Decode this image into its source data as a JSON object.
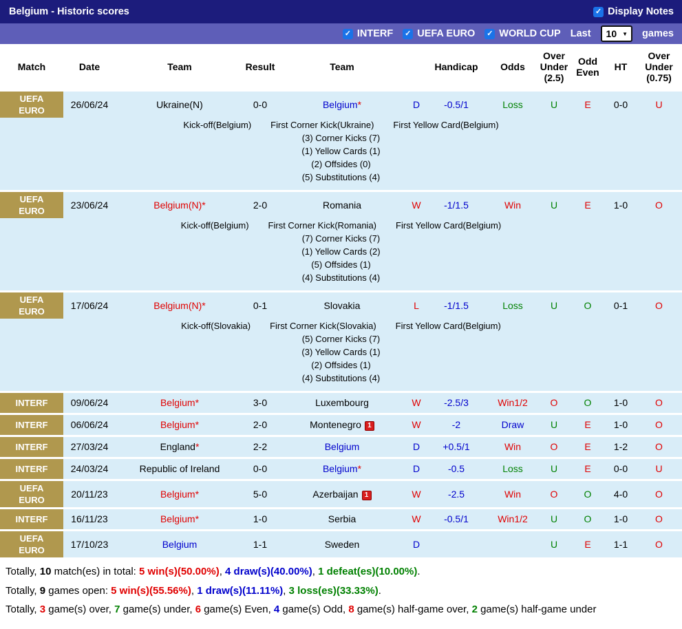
{
  "colors": {
    "bar1_bg": "#1c1c7c",
    "bar2_bg": "#5e5eb8",
    "badge_bg": "#b0984e",
    "row_bg": "#d9edf8",
    "red": "#e00000",
    "blue": "#0000cc",
    "green": "#008000",
    "checkbox_blue": "#1a73e8"
  },
  "title_bar": {
    "title": "Belgium - Historic scores",
    "display_notes_label": "Display Notes"
  },
  "filter_bar": {
    "filters": [
      "INTERF",
      "UEFA EURO",
      "WORLD CUP"
    ],
    "last_label": "Last",
    "selected_count": "10",
    "games_label": "games"
  },
  "table": {
    "headers": [
      "Match",
      "Date",
      "Team",
      "Result",
      "Team",
      "",
      "Handicap",
      "Odds",
      "Over\nUnder\n(2.5)",
      "Odd\nEven",
      "HT",
      "Over\nUnder\n(0.75)"
    ],
    "rows": [
      {
        "competition": "UEFA EURO",
        "date": "26/06/24",
        "home": {
          "name": "Ukraine(N)",
          "color": "black",
          "star": false,
          "red_card": false
        },
        "result": "0-0",
        "away": {
          "name": "Belgium",
          "color": "blue",
          "star": true,
          "red_card": false
        },
        "outcome": {
          "text": "D",
          "color": "blue"
        },
        "handicap": "-0.5/1",
        "odds": {
          "text": "Loss",
          "color": "green"
        },
        "over_under_25": {
          "text": "U",
          "color": "green"
        },
        "odd_even": {
          "text": "E",
          "color": "red"
        },
        "ht": "0-0",
        "over_under_075": {
          "text": "U",
          "color": "red"
        },
        "notes": {
          "kick_off": "Kick-off(Belgium)",
          "first_corner": "First Corner Kick(Ukraine)",
          "first_yellow": "First Yellow Card(Belgium)",
          "stats": [
            "(3) Corner Kicks (7)",
            "(1) Yellow Cards (1)",
            "(2) Offsides (0)",
            "(5) Substitutions (4)"
          ]
        }
      },
      {
        "competition": "UEFA EURO",
        "date": "23/06/24",
        "home": {
          "name": "Belgium(N)",
          "color": "red",
          "star": true,
          "red_card": false
        },
        "result": "2-0",
        "away": {
          "name": "Romania",
          "color": "black",
          "star": false,
          "red_card": false
        },
        "outcome": {
          "text": "W",
          "color": "red"
        },
        "handicap": "-1/1.5",
        "odds": {
          "text": "Win",
          "color": "red"
        },
        "over_under_25": {
          "text": "U",
          "color": "green"
        },
        "odd_even": {
          "text": "E",
          "color": "red"
        },
        "ht": "1-0",
        "over_under_075": {
          "text": "O",
          "color": "red"
        },
        "notes": {
          "kick_off": "Kick-off(Belgium)",
          "first_corner": "First Corner Kick(Romania)",
          "first_yellow": "First Yellow Card(Belgium)",
          "stats": [
            "(7) Corner Kicks (7)",
            "(1) Yellow Cards (2)",
            "(5) Offsides (1)",
            "(4) Substitutions (4)"
          ]
        }
      },
      {
        "competition": "UEFA EURO",
        "date": "17/06/24",
        "home": {
          "name": "Belgium(N)",
          "color": "red",
          "star": true,
          "red_card": false
        },
        "result": "0-1",
        "away": {
          "name": "Slovakia",
          "color": "black",
          "star": false,
          "red_card": false
        },
        "outcome": {
          "text": "L",
          "color": "red"
        },
        "handicap": "-1/1.5",
        "odds": {
          "text": "Loss",
          "color": "green"
        },
        "over_under_25": {
          "text": "U",
          "color": "green"
        },
        "odd_even": {
          "text": "O",
          "color": "green"
        },
        "ht": "0-1",
        "over_under_075": {
          "text": "O",
          "color": "red"
        },
        "notes": {
          "kick_off": "Kick-off(Slovakia)",
          "first_corner": "First Corner Kick(Slovakia)",
          "first_yellow": "First Yellow Card(Belgium)",
          "stats": [
            "(5) Corner Kicks (7)",
            "(3) Yellow Cards (1)",
            "(2) Offsides (1)",
            "(4) Substitutions (4)"
          ]
        }
      },
      {
        "competition": "INTERF",
        "date": "09/06/24",
        "home": {
          "name": "Belgium",
          "color": "red",
          "star": true,
          "red_card": false
        },
        "result": "3-0",
        "away": {
          "name": "Luxembourg",
          "color": "black",
          "star": false,
          "red_card": false
        },
        "outcome": {
          "text": "W",
          "color": "red"
        },
        "handicap": "-2.5/3",
        "odds": {
          "text": "Win1/2",
          "color": "red"
        },
        "over_under_25": {
          "text": "O",
          "color": "red"
        },
        "odd_even": {
          "text": "O",
          "color": "green"
        },
        "ht": "1-0",
        "over_under_075": {
          "text": "O",
          "color": "red"
        },
        "notes": null
      },
      {
        "competition": "INTERF",
        "date": "06/06/24",
        "home": {
          "name": "Belgium",
          "color": "red",
          "star": true,
          "red_card": false
        },
        "result": "2-0",
        "away": {
          "name": "Montenegro",
          "color": "black",
          "star": false,
          "red_card": true
        },
        "outcome": {
          "text": "W",
          "color": "red"
        },
        "handicap": "-2",
        "odds": {
          "text": "Draw",
          "color": "blue"
        },
        "over_under_25": {
          "text": "U",
          "color": "green"
        },
        "odd_even": {
          "text": "E",
          "color": "red"
        },
        "ht": "1-0",
        "over_under_075": {
          "text": "O",
          "color": "red"
        },
        "notes": null
      },
      {
        "competition": "INTERF",
        "date": "27/03/24",
        "home": {
          "name": "England",
          "color": "black",
          "star": true,
          "red_card": false
        },
        "result": "2-2",
        "away": {
          "name": "Belgium",
          "color": "blue",
          "star": false,
          "red_card": false
        },
        "outcome": {
          "text": "D",
          "color": "blue"
        },
        "handicap": "+0.5/1",
        "odds": {
          "text": "Win",
          "color": "red"
        },
        "over_under_25": {
          "text": "O",
          "color": "red"
        },
        "odd_even": {
          "text": "E",
          "color": "red"
        },
        "ht": "1-2",
        "over_under_075": {
          "text": "O",
          "color": "red"
        },
        "notes": null
      },
      {
        "competition": "INTERF",
        "date": "24/03/24",
        "home": {
          "name": "Republic of Ireland",
          "color": "black",
          "star": false,
          "red_card": false
        },
        "result": "0-0",
        "away": {
          "name": "Belgium",
          "color": "blue",
          "star": true,
          "red_card": false
        },
        "outcome": {
          "text": "D",
          "color": "blue"
        },
        "handicap": "-0.5",
        "odds": {
          "text": "Loss",
          "color": "green"
        },
        "over_under_25": {
          "text": "U",
          "color": "green"
        },
        "odd_even": {
          "text": "E",
          "color": "red"
        },
        "ht": "0-0",
        "over_under_075": {
          "text": "U",
          "color": "red"
        },
        "notes": null
      },
      {
        "competition": "UEFA EURO",
        "date": "20/11/23",
        "home": {
          "name": "Belgium",
          "color": "red",
          "star": true,
          "red_card": false
        },
        "result": "5-0",
        "away": {
          "name": "Azerbaijan",
          "color": "black",
          "star": false,
          "red_card": true
        },
        "outcome": {
          "text": "W",
          "color": "red"
        },
        "handicap": "-2.5",
        "odds": {
          "text": "Win",
          "color": "red"
        },
        "over_under_25": {
          "text": "O",
          "color": "red"
        },
        "odd_even": {
          "text": "O",
          "color": "green"
        },
        "ht": "4-0",
        "over_under_075": {
          "text": "O",
          "color": "red"
        },
        "notes": null
      },
      {
        "competition": "INTERF",
        "date": "16/11/23",
        "home": {
          "name": "Belgium",
          "color": "red",
          "star": true,
          "red_card": false
        },
        "result": "1-0",
        "away": {
          "name": "Serbia",
          "color": "black",
          "star": false,
          "red_card": false
        },
        "outcome": {
          "text": "W",
          "color": "red"
        },
        "handicap": "-0.5/1",
        "odds": {
          "text": "Win1/2",
          "color": "red"
        },
        "over_under_25": {
          "text": "U",
          "color": "green"
        },
        "odd_even": {
          "text": "O",
          "color": "green"
        },
        "ht": "1-0",
        "over_under_075": {
          "text": "O",
          "color": "red"
        },
        "notes": null
      },
      {
        "competition": "UEFA EURO",
        "date": "17/10/23",
        "home": {
          "name": "Belgium",
          "color": "blue",
          "star": false,
          "red_card": false
        },
        "result": "1-1",
        "away": {
          "name": "Sweden",
          "color": "black",
          "star": false,
          "red_card": false
        },
        "outcome": {
          "text": "D",
          "color": "blue"
        },
        "handicap": "",
        "odds": {
          "text": "",
          "color": "black"
        },
        "over_under_25": {
          "text": "U",
          "color": "green"
        },
        "odd_even": {
          "text": "E",
          "color": "red"
        },
        "ht": "1-1",
        "over_under_075": {
          "text": "O",
          "color": "red"
        },
        "notes": null
      }
    ]
  },
  "summary": [
    [
      {
        "text": "Totally, ",
        "color": "black",
        "bold": false
      },
      {
        "text": "10",
        "color": "black",
        "bold": true
      },
      {
        "text": " match(es) in total: ",
        "color": "black",
        "bold": false
      },
      {
        "text": "5 win(s)(50.00%)",
        "color": "red",
        "bold": true
      },
      {
        "text": ", ",
        "color": "black",
        "bold": false
      },
      {
        "text": "4 draw(s)(40.00%)",
        "color": "blue",
        "bold": true
      },
      {
        "text": ", ",
        "color": "black",
        "bold": false
      },
      {
        "text": "1 defeat(es)(10.00%)",
        "color": "green",
        "bold": true
      },
      {
        "text": ".",
        "color": "black",
        "bold": false
      }
    ],
    [
      {
        "text": "Totally, ",
        "color": "black",
        "bold": false
      },
      {
        "text": "9",
        "color": "black",
        "bold": true
      },
      {
        "text": " games open: ",
        "color": "black",
        "bold": false
      },
      {
        "text": "5 win(s)(55.56%)",
        "color": "red",
        "bold": true
      },
      {
        "text": ", ",
        "color": "black",
        "bold": false
      },
      {
        "text": "1 draw(s)(11.11%)",
        "color": "blue",
        "bold": true
      },
      {
        "text": ", ",
        "color": "black",
        "bold": false
      },
      {
        "text": "3 loss(es)(33.33%)",
        "color": "green",
        "bold": true
      },
      {
        "text": ".",
        "color": "black",
        "bold": false
      }
    ],
    [
      {
        "text": "Totally, ",
        "color": "black",
        "bold": false
      },
      {
        "text": "3",
        "color": "red",
        "bold": true
      },
      {
        "text": " game(s) over, ",
        "color": "black",
        "bold": false
      },
      {
        "text": "7",
        "color": "green",
        "bold": true
      },
      {
        "text": " game(s) under, ",
        "color": "black",
        "bold": false
      },
      {
        "text": "6",
        "color": "red",
        "bold": true
      },
      {
        "text": " game(s) Even, ",
        "color": "black",
        "bold": false
      },
      {
        "text": "4",
        "color": "blue",
        "bold": true
      },
      {
        "text": " game(s) Odd, ",
        "color": "black",
        "bold": false
      },
      {
        "text": "8",
        "color": "red",
        "bold": true
      },
      {
        "text": " game(s) half-game over, ",
        "color": "black",
        "bold": false
      },
      {
        "text": "2",
        "color": "green",
        "bold": true
      },
      {
        "text": " game(s) half-game under",
        "color": "black",
        "bold": false
      }
    ]
  ]
}
